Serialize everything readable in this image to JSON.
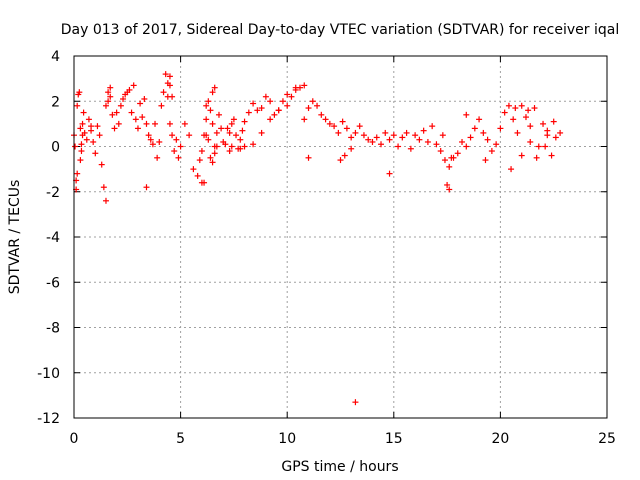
{
  "chart_data": {
    "type": "scatter",
    "title": "Day 013 of 2017, Sidereal Day-to-day VTEC variation (SDTVAR) for receiver iqal",
    "xlabel": "GPS time / hours",
    "ylabel": "SDTVAR / TECUs",
    "xlim": [
      0,
      25
    ],
    "ylim": [
      -12,
      4
    ],
    "xticks": [
      "0",
      "5",
      "10",
      "15",
      "20",
      "25"
    ],
    "yticks": [
      "4",
      "2",
      "0",
      "-2",
      "-4",
      "-6",
      "-8",
      "-10",
      "-12"
    ],
    "grid": true,
    "marker": "plus",
    "color": "#ff0000",
    "series": [
      {
        "name": "SDTVAR",
        "x": [
          0.0,
          0.05,
          0.1,
          0.15,
          0.2,
          0.25,
          0.3,
          0.35,
          0.4,
          0.45,
          0.5,
          0.6,
          0.7,
          0.8,
          0.9,
          1.0,
          1.1,
          1.2,
          1.3,
          1.4,
          1.5,
          1.6,
          1.7,
          1.8,
          1.9,
          2.0,
          2.1,
          2.2,
          2.3,
          2.4,
          2.5,
          2.6,
          2.7,
          2.8,
          2.9,
          3.0,
          3.1,
          3.2,
          3.3,
          3.4,
          3.5,
          3.6,
          3.7,
          3.8,
          3.9,
          4.0,
          4.1,
          4.2,
          4.3,
          4.4,
          4.5,
          4.6,
          4.7,
          4.8,
          4.9,
          5.0,
          5.2,
          5.4,
          5.6,
          5.8,
          5.9,
          6.0,
          6.1,
          6.2,
          6.3,
          6.4,
          6.5,
          6.6,
          6.7,
          6.8,
          6.9,
          7.0,
          7.1,
          7.2,
          7.3,
          7.4,
          7.5,
          7.6,
          7.7,
          7.8,
          7.9,
          8.0,
          8.2,
          8.4,
          8.6,
          8.8,
          9.0,
          9.2,
          9.4,
          9.6,
          9.8,
          10.0,
          10.2,
          10.4,
          10.6,
          10.8,
          11.0,
          11.2,
          11.4,
          11.6,
          11.8,
          12.0,
          12.2,
          12.4,
          12.6,
          12.8,
          13.0,
          13.2,
          13.4,
          13.6,
          13.8,
          14.0,
          14.2,
          14.4,
          14.6,
          14.8,
          15.0,
          15.2,
          15.4,
          15.6,
          15.8,
          16.0,
          16.2,
          16.4,
          16.6,
          16.8,
          17.0,
          17.2,
          17.4,
          17.6,
          17.8,
          18.0,
          18.2,
          18.4,
          18.6,
          18.8,
          19.0,
          19.2,
          19.4,
          19.6,
          19.8,
          20.0,
          20.2,
          20.4,
          20.6,
          20.8,
          21.0,
          21.2,
          21.4,
          21.6,
          21.8,
          22.0,
          22.2,
          22.4,
          22.6,
          22.8,
          0.1,
          0.15,
          0.3,
          0.35,
          0.4,
          0.8,
          1.5,
          1.6,
          1.7,
          3.4,
          4.4,
          4.5,
          4.6,
          4.5,
          6.0,
          6.1,
          6.2,
          6.5,
          6.6,
          6.2,
          6.3,
          6.4,
          6.5,
          6.6,
          6.7,
          7.3,
          7.4,
          7.8,
          8.0,
          8.4,
          8.8,
          9.2,
          9.6,
          10.0,
          10.4,
          10.8,
          11.0,
          12.5,
          12.7,
          13.0,
          13.2,
          14.8,
          17.5,
          17.6,
          17.7,
          17.3,
          18.4,
          19.3,
          20.5,
          21.0,
          21.3,
          21.7,
          22.1,
          22.5,
          20.7,
          21.4,
          22.2
        ],
        "y": [
          0.5,
          0.0,
          -1.5,
          1.8,
          2.3,
          2.4,
          0.8,
          -0.2,
          1.0,
          1.5,
          0.6,
          0.3,
          1.2,
          0.7,
          0.2,
          -0.3,
          0.9,
          0.5,
          -0.8,
          -1.8,
          1.8,
          2.0,
          2.2,
          1.4,
          0.8,
          1.5,
          1.0,
          1.8,
          2.1,
          2.3,
          2.4,
          2.5,
          1.5,
          2.7,
          1.2,
          0.8,
          1.9,
          1.3,
          2.1,
          1.0,
          0.5,
          0.3,
          0.1,
          1.0,
          -0.5,
          0.2,
          1.8,
          2.4,
          3.2,
          2.8,
          1.0,
          0.5,
          -0.2,
          0.3,
          -0.5,
          0.0,
          1.0,
          0.5,
          -1.0,
          -1.3,
          -0.6,
          -0.2,
          0.5,
          1.2,
          0.3,
          -0.5,
          1.0,
          0.0,
          0.6,
          1.4,
          0.8,
          0.2,
          0.1,
          0.8,
          0.6,
          1.0,
          1.2,
          0.5,
          -0.1,
          0.3,
          0.7,
          1.1,
          1.5,
          1.9,
          1.6,
          1.7,
          2.2,
          2.0,
          1.4,
          1.6,
          2.0,
          2.3,
          2.2,
          2.5,
          2.6,
          2.7,
          1.7,
          2.0,
          1.8,
          1.4,
          1.2,
          1.0,
          0.9,
          0.6,
          1.1,
          0.8,
          0.4,
          0.6,
          0.9,
          0.5,
          0.3,
          0.2,
          0.4,
          0.1,
          0.6,
          0.3,
          0.5,
          0.0,
          0.4,
          0.6,
          -0.1,
          0.5,
          0.3,
          0.7,
          0.2,
          0.9,
          0.1,
          -0.2,
          -0.6,
          -0.9,
          -0.5,
          -0.3,
          0.2,
          0.0,
          0.4,
          0.8,
          1.2,
          0.6,
          0.3,
          -0.2,
          0.1,
          0.8,
          1.5,
          1.8,
          1.2,
          0.6,
          -0.4,
          1.3,
          0.2,
          1.7,
          0.0,
          1.0,
          0.5,
          -0.4,
          0.4,
          0.6,
          -1.9,
          -1.2,
          -0.6,
          0.1,
          0.5,
          0.9,
          -2.4,
          2.4,
          2.6,
          -1.8,
          2.2,
          2.7,
          2.2,
          3.1,
          -1.6,
          -1.6,
          0.5,
          2.4,
          2.6,
          1.8,
          2.0,
          1.6,
          -0.7,
          -0.3,
          0.0,
          -0.2,
          0.0,
          -0.1,
          0.0,
          0.1,
          0.6,
          1.2,
          1.6,
          1.8,
          2.6,
          1.2,
          -0.5,
          -0.6,
          -0.4,
          -0.1,
          -11.3,
          -1.2,
          -1.7,
          -1.9,
          -0.5,
          0.5,
          1.4,
          -0.6,
          -1.0,
          1.8,
          1.6,
          -0.5,
          0.0,
          1.1,
          1.7,
          0.9,
          0.7
        ]
      }
    ]
  }
}
